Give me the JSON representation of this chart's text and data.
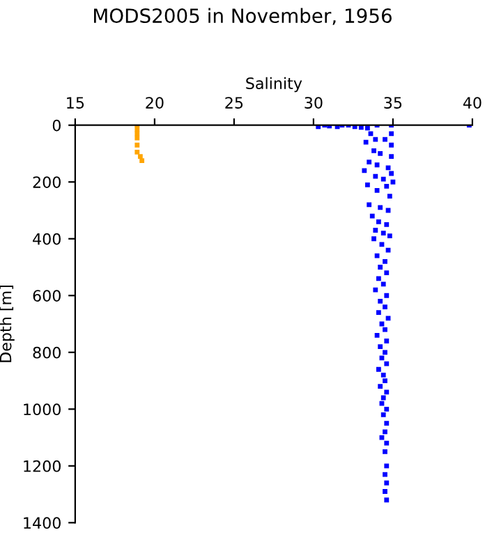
{
  "chart_data": {
    "type": "scatter",
    "title": "MODS2005 in November, 1956",
    "xlabel": "Salinity",
    "ylabel": "Depth [m]",
    "xlim": [
      15,
      40
    ],
    "xticks": [
      15,
      20,
      25,
      30,
      35,
      40
    ],
    "ylim": [
      1400,
      0
    ],
    "yticks": [
      0,
      200,
      400,
      600,
      800,
      1000,
      1200,
      1400
    ],
    "marker": "square",
    "grid": false,
    "legend": false,
    "series": [
      {
        "color": "#ffa500",
        "x": [
          18.9,
          18.9,
          18.9,
          18.9,
          18.9,
          18.9,
          19.1,
          19.2
        ],
        "values": [
          0,
          15,
          30,
          45,
          70,
          95,
          110,
          125
        ]
      },
      {
        "color": "#0000ff",
        "x": [
          30.3,
          30.7,
          31.0,
          31.5,
          31.8,
          32.2,
          32.6,
          33.0,
          33.4,
          34.0,
          34.9,
          39.8,
          33.6,
          34.9,
          33.9,
          34.5,
          33.3,
          34.9,
          33.8,
          34.2,
          34.9,
          33.5,
          34.0,
          34.7,
          33.2,
          34.9,
          33.9,
          34.4,
          35.0,
          33.4,
          34.6,
          34.0,
          34.8,
          33.5,
          34.2,
          34.7,
          33.7,
          34.1,
          34.6,
          33.9,
          34.4,
          34.8,
          33.8,
          34.3,
          34.7,
          34.0,
          34.5,
          34.2,
          34.6,
          34.1,
          34.4,
          33.9,
          34.6,
          34.2,
          34.5,
          34.1,
          34.7,
          34.3,
          34.5,
          34.0,
          34.6,
          34.2,
          34.5,
          34.3,
          34.6,
          34.1,
          34.4,
          34.5,
          34.2,
          34.6,
          34.4,
          34.3,
          34.6,
          34.4,
          34.6,
          34.5,
          34.3,
          34.6,
          34.5,
          34.6,
          34.5,
          34.6,
          34.5,
          34.6
        ],
        "values": [
          5,
          0,
          3,
          5,
          0,
          0,
          5,
          8,
          10,
          0,
          0,
          0,
          30,
          30,
          50,
          50,
          60,
          70,
          90,
          100,
          110,
          130,
          140,
          150,
          160,
          170,
          180,
          190,
          200,
          210,
          215,
          230,
          250,
          280,
          290,
          300,
          320,
          340,
          350,
          370,
          380,
          390,
          400,
          420,
          440,
          460,
          480,
          500,
          520,
          540,
          560,
          580,
          600,
          620,
          640,
          660,
          680,
          700,
          720,
          740,
          760,
          780,
          800,
          820,
          840,
          860,
          880,
          900,
          920,
          940,
          960,
          980,
          1000,
          1020,
          1050,
          1080,
          1100,
          1120,
          1150,
          1200,
          1230,
          1260,
          1290,
          1320
        ]
      }
    ]
  }
}
